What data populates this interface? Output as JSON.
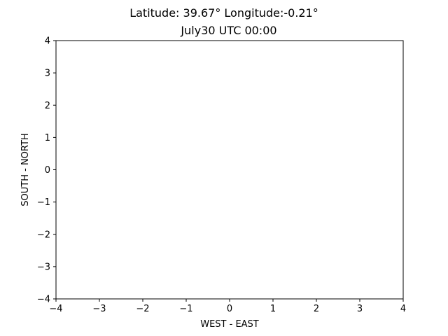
{
  "chart_data": {
    "type": "scatter",
    "title_lines": [
      "Latitude: 39.67° Longitude:-0.21°",
      "July30 UTC 00:00"
    ],
    "xlabel": "WEST - EAST",
    "ylabel": "SOUTH - NORTH",
    "xlim": [
      -4,
      4
    ],
    "ylim": [
      -4,
      4
    ],
    "xticks": [
      -4,
      -3,
      -2,
      -1,
      0,
      1,
      2,
      3,
      4
    ],
    "yticks": [
      -4,
      -3,
      -2,
      -1,
      0,
      1,
      2,
      3,
      4
    ],
    "xtick_labels": [
      "−4",
      "−3",
      "−2",
      "−1",
      "0",
      "1",
      "2",
      "3",
      "4"
    ],
    "ytick_labels": [
      "−4",
      "−3",
      "−2",
      "−1",
      "0",
      "1",
      "2",
      "3",
      "4"
    ],
    "grid": false,
    "series": []
  }
}
